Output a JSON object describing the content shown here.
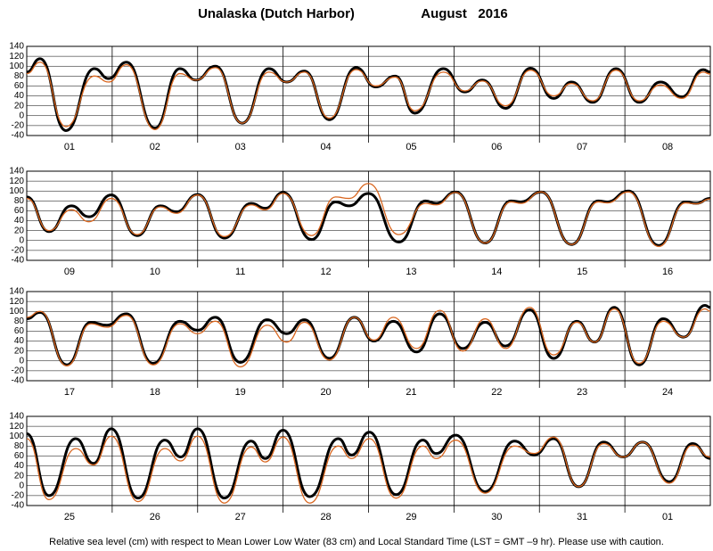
{
  "header": {
    "title": "Unalaska (Dutch Harbor)",
    "date": "August   2016"
  },
  "footer": "Relative sea level (cm) with respect to Mean Lower Low Water (83 cm) and Local Standard Time (LST = GMT –9 hr). Please use with caution.",
  "chart_data": [
    {
      "type": "line",
      "xlim": [
        0,
        192
      ],
      "ylim": [
        -40,
        140
      ],
      "yticks": [
        -40,
        -20,
        0,
        20,
        40,
        60,
        80,
        100,
        120,
        140
      ],
      "grid": true,
      "xticks": [
        {
          "value": 12,
          "label": "01"
        },
        {
          "value": 36,
          "label": "02"
        },
        {
          "value": 60,
          "label": "03"
        },
        {
          "value": 84,
          "label": "04"
        },
        {
          "value": 108,
          "label": "05"
        },
        {
          "value": 132,
          "label": "06"
        },
        {
          "value": 156,
          "label": "07"
        },
        {
          "value": 180,
          "label": "08"
        }
      ],
      "x": [
        0,
        3.75,
        11,
        19,
        23,
        28,
        36,
        43,
        47.5,
        53,
        60.5,
        68,
        73,
        78,
        85,
        92.5,
        98,
        103.5,
        109,
        117,
        123,
        128,
        134.5,
        141.5,
        148,
        153,
        159,
        165.5,
        172,
        178,
        184,
        190,
        192
      ],
      "series": [
        {
          "color": "#000000",
          "values": [
            88,
            115,
            -30,
            95,
            75,
            108,
            -25,
            95,
            72,
            100,
            -15,
            95,
            68,
            90,
            -8,
            97,
            58,
            80,
            5,
            95,
            48,
            72,
            15,
            96,
            35,
            68,
            27,
            95,
            27,
            68,
            38,
            93,
            88
          ]
        },
        {
          "color": "#d9661f",
          "values": [
            85,
            108,
            -22,
            80,
            68,
            103,
            -28,
            85,
            72,
            97,
            -15,
            88,
            68,
            88,
            -5,
            93,
            60,
            78,
            10,
            88,
            50,
            70,
            20,
            92,
            40,
            65,
            30,
            92,
            30,
            62,
            35,
            88,
            84
          ]
        }
      ]
    },
    {
      "type": "line",
      "xlim": [
        0,
        192
      ],
      "ylim": [
        -40,
        140
      ],
      "yticks": [
        -40,
        -20,
        0,
        20,
        40,
        60,
        80,
        100,
        120,
        140
      ],
      "grid": true,
      "xticks": [
        {
          "value": 12,
          "label": "09"
        },
        {
          "value": 36,
          "label": "10"
        },
        {
          "value": 60,
          "label": "11"
        },
        {
          "value": 84,
          "label": "12"
        },
        {
          "value": 108,
          "label": "13"
        },
        {
          "value": 132,
          "label": "14"
        },
        {
          "value": 156,
          "label": "15"
        },
        {
          "value": 180,
          "label": "16"
        }
      ],
      "x": [
        0,
        6.25,
        12.5,
        17.5,
        23.75,
        31,
        37.5,
        42,
        48,
        55.5,
        63,
        67,
        72,
        80,
        86.75,
        90.5,
        96,
        104.5,
        112,
        115,
        120.5,
        128.75,
        136,
        138.75,
        144.5,
        153,
        160.5,
        163,
        169,
        177.5,
        185,
        188,
        192
      ],
      "series": [
        {
          "color": "#000000",
          "values": [
            88,
            18,
            70,
            48,
            92,
            10,
            70,
            58,
            93,
            5,
            75,
            65,
            97,
            2,
            78,
            70,
            95,
            -3,
            80,
            75,
            98,
            -5,
            80,
            78,
            98,
            -8,
            80,
            78,
            100,
            -10,
            78,
            75,
            85
          ]
        },
        {
          "color": "#d9661f",
          "values": [
            85,
            20,
            62,
            38,
            85,
            12,
            68,
            55,
            92,
            8,
            72,
            62,
            95,
            10,
            88,
            85,
            115,
            12,
            75,
            72,
            97,
            -5,
            78,
            75,
            98,
            -8,
            78,
            76,
            98,
            -12,
            76,
            74,
            84
          ]
        }
      ]
    },
    {
      "type": "line",
      "xlim": [
        0,
        192
      ],
      "ylim": [
        -40,
        140
      ],
      "yticks": [
        -40,
        -20,
        0,
        20,
        40,
        60,
        80,
        100,
        120,
        140
      ],
      "grid": true,
      "xticks": [
        {
          "value": 12,
          "label": "17"
        },
        {
          "value": 36,
          "label": "18"
        },
        {
          "value": 60,
          "label": "19"
        },
        {
          "value": 84,
          "label": "20"
        },
        {
          "value": 108,
          "label": "21"
        },
        {
          "value": 132,
          "label": "22"
        },
        {
          "value": 156,
          "label": "23"
        },
        {
          "value": 180,
          "label": "24"
        }
      ],
      "x": [
        0,
        3.75,
        11.25,
        18,
        22.5,
        28,
        35.5,
        43,
        48,
        53,
        60,
        67.5,
        73,
        78,
        85,
        92,
        97.5,
        103,
        109.5,
        116,
        122.5,
        128.75,
        134.5,
        141.25,
        148,
        154.5,
        159.5,
        165,
        172,
        178.75,
        184.5,
        190.5,
        192
      ],
      "series": [
        {
          "color": "#000000",
          "values": [
            85,
            98,
            -8,
            78,
            72,
            95,
            -5,
            80,
            62,
            88,
            -3,
            83,
            55,
            83,
            5,
            88,
            40,
            80,
            18,
            95,
            25,
            78,
            30,
            103,
            5,
            80,
            38,
            108,
            -8,
            85,
            48,
            112,
            108
          ]
        },
        {
          "color": "#d9661f",
          "values": [
            88,
            100,
            -10,
            75,
            68,
            92,
            -8,
            75,
            55,
            80,
            -12,
            72,
            38,
            78,
            2,
            88,
            42,
            88,
            25,
            102,
            20,
            85,
            25,
            108,
            12,
            78,
            38,
            105,
            -5,
            80,
            48,
            105,
            100
          ]
        }
      ]
    },
    {
      "type": "line",
      "xlim": [
        0,
        192
      ],
      "ylim": [
        -40,
        140
      ],
      "yticks": [
        -40,
        -20,
        0,
        20,
        40,
        60,
        80,
        100,
        120,
        140
      ],
      "grid": true,
      "xticks": [
        {
          "value": 12,
          "label": "25"
        },
        {
          "value": 36,
          "label": "26"
        },
        {
          "value": 60,
          "label": "27"
        },
        {
          "value": 84,
          "label": "28"
        },
        {
          "value": 108,
          "label": "29"
        },
        {
          "value": 132,
          "label": "30"
        },
        {
          "value": 156,
          "label": "31"
        },
        {
          "value": 180,
          "label": "01"
        }
      ],
      "x": [
        0,
        6.25,
        13.75,
        18.75,
        23.75,
        31.25,
        38.75,
        43.25,
        48,
        55.5,
        63,
        67,
        72,
        79.5,
        87.5,
        91.25,
        96.25,
        103.75,
        111.25,
        115,
        120.5,
        128.75,
        137,
        142.5,
        148,
        155,
        162,
        167.5,
        173,
        180.5,
        187,
        192
      ],
      "series": [
        {
          "color": "#000000",
          "values": [
            105,
            -20,
            95,
            45,
            115,
            -25,
            92,
            58,
            115,
            -25,
            90,
            55,
            112,
            -22,
            95,
            62,
            108,
            -18,
            92,
            65,
            102,
            -12,
            90,
            62,
            95,
            -2,
            88,
            58,
            88,
            8,
            85,
            55
          ]
        },
        {
          "color": "#d9661f",
          "values": [
            95,
            -28,
            75,
            42,
            100,
            -32,
            75,
            50,
            100,
            -35,
            78,
            48,
            98,
            -35,
            80,
            55,
            95,
            -25,
            80,
            55,
            92,
            -15,
            80,
            65,
            98,
            -2,
            85,
            58,
            88,
            5,
            82,
            58
          ]
        }
      ]
    }
  ]
}
